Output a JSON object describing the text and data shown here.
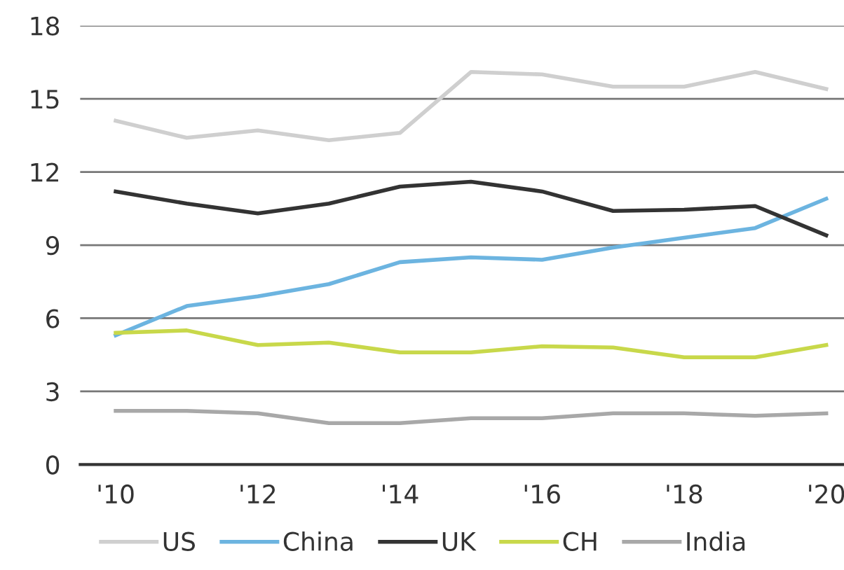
{
  "chart_data": {
    "type": "line",
    "x": [
      2010,
      2011,
      2012,
      2013,
      2014,
      2015,
      2016,
      2017,
      2018,
      2019,
      2020
    ],
    "series": [
      {
        "name": "US",
        "color": "#cfcfcf",
        "values": [
          14.1,
          13.4,
          13.7,
          13.3,
          13.6,
          16.1,
          16.0,
          15.5,
          15.5,
          16.1,
          15.4
        ]
      },
      {
        "name": "China",
        "color": "#6cb4e0",
        "values": [
          5.3,
          6.5,
          6.9,
          7.4,
          8.3,
          8.5,
          8.4,
          8.9,
          9.3,
          9.7,
          10.9
        ]
      },
      {
        "name": "UK",
        "color": "#333333",
        "values": [
          11.2,
          10.7,
          10.3,
          10.7,
          11.4,
          11.6,
          11.2,
          10.4,
          10.45,
          10.6,
          9.4
        ]
      },
      {
        "name": "CH",
        "color": "#c8d84a",
        "values": [
          5.4,
          5.5,
          4.9,
          5.0,
          4.6,
          4.6,
          4.85,
          4.8,
          4.4,
          4.4,
          4.9
        ]
      },
      {
        "name": "India",
        "color": "#a8a8a8",
        "values": [
          2.2,
          2.2,
          2.1,
          1.7,
          1.7,
          1.9,
          1.9,
          2.1,
          2.1,
          2.0,
          2.1
        ]
      }
    ],
    "xlim": [
      2009.5,
      2020.25
    ],
    "ylim": [
      0,
      18
    ],
    "xticks": [
      {
        "value": 2010,
        "label": "'10"
      },
      {
        "value": 2012,
        "label": "'12"
      },
      {
        "value": 2014,
        "label": "'14"
      },
      {
        "value": 2016,
        "label": "'16"
      },
      {
        "value": 2018,
        "label": "'18"
      },
      {
        "value": 2020,
        "label": "'20"
      }
    ],
    "yticks": [
      0,
      3,
      6,
      9,
      12,
      15,
      18
    ],
    "grid": "y",
    "legend": "bottom",
    "marker": "none",
    "line_style": "solid"
  }
}
